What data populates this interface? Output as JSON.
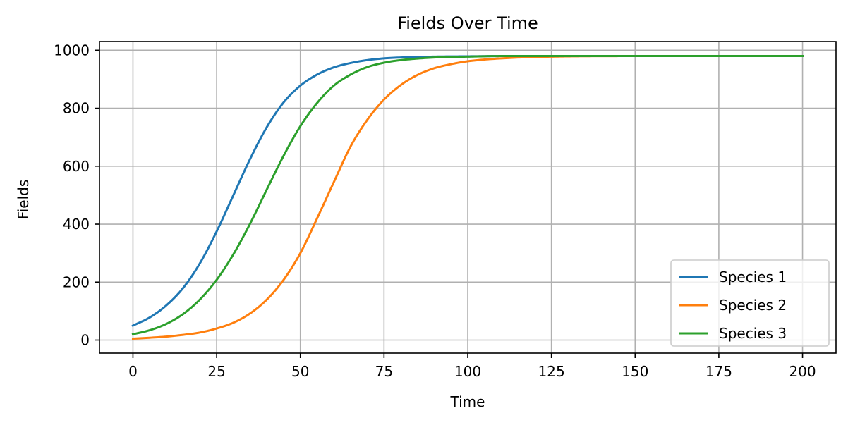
{
  "chart_data": {
    "type": "line",
    "title": "Fields Over Time",
    "xlabel": "Time",
    "ylabel": "Fields",
    "xlim": [
      -10,
      210
    ],
    "ylim": [
      -45,
      1030
    ],
    "xticks": [
      0,
      25,
      50,
      75,
      100,
      125,
      150,
      175,
      200
    ],
    "yticks": [
      0,
      200,
      400,
      600,
      800,
      1000
    ],
    "grid": true,
    "legend_position": "lower-right",
    "x_range": [
      0,
      200
    ],
    "series": [
      {
        "name": "Species 1",
        "color": "#1f77b4",
        "x": [
          0,
          5,
          10,
          15,
          20,
          25,
          30,
          35,
          40,
          45,
          50,
          55,
          60,
          65,
          70,
          75,
          80,
          90,
          100,
          110,
          125,
          150,
          175,
          200
        ],
        "y": [
          50,
          78,
          120,
          180,
          265,
          375,
          500,
          625,
          735,
          820,
          878,
          916,
          941,
          956,
          966,
          972,
          975,
          978,
          979,
          980,
          980,
          980,
          980,
          980
        ]
      },
      {
        "name": "Species 2",
        "color": "#ff7f0e",
        "x": [
          0,
          5,
          10,
          15,
          20,
          25,
          30,
          35,
          40,
          45,
          50,
          55,
          60,
          65,
          70,
          75,
          80,
          85,
          90,
          95,
          100,
          110,
          125,
          150,
          175,
          200
        ],
        "y": [
          5,
          8,
          12,
          18,
          26,
          40,
          60,
          92,
          140,
          208,
          300,
          420,
          545,
          668,
          760,
          830,
          880,
          915,
          938,
          952,
          962,
          972,
          978,
          980,
          980,
          980
        ]
      },
      {
        "name": "Species 3",
        "color": "#2ca02c",
        "x": [
          0,
          5,
          10,
          15,
          20,
          25,
          30,
          35,
          40,
          45,
          50,
          55,
          60,
          65,
          70,
          75,
          80,
          90,
          100,
          110,
          125,
          150,
          175,
          200
        ],
        "y": [
          20,
          34,
          56,
          90,
          140,
          208,
          296,
          402,
          520,
          636,
          738,
          818,
          878,
          916,
          942,
          957,
          966,
          975,
          978,
          980,
          980,
          980,
          980,
          980
        ]
      }
    ]
  }
}
